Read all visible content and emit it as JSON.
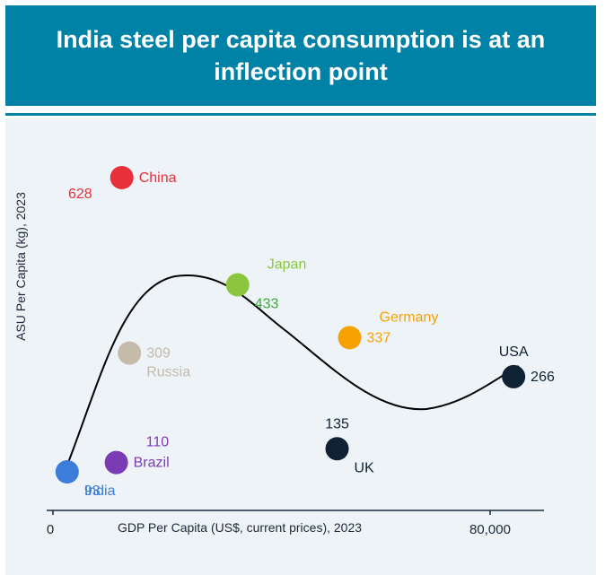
{
  "title": "India steel per capita consumption is at an inflection point",
  "colors": {
    "banner": "#0081a6",
    "panel": "#eef3f8",
    "axis": "#1a2a3a",
    "curve": "#000000"
  },
  "chart_data": {
    "type": "scatter",
    "title": "India steel per capita consumption is at an inflection point",
    "xlabel": "GDP Per Capita (US$, current prices), 2023",
    "ylabel": "ASU Per Capita (kg), 2023",
    "x_ticks": [
      "0",
      "80,000"
    ],
    "trend_curve": true,
    "points": [
      {
        "name": "China",
        "value": 628,
        "value_label": "628",
        "gdp": 12600,
        "color": "#e8303a",
        "label_color": "#e8303a",
        "value_color": "#e8303a",
        "name_pos": "right",
        "value_pos": "below-left"
      },
      {
        "name": "Japan",
        "value": 433,
        "value_label": "433",
        "gdp": 33800,
        "color": "#8cc63f",
        "label_color": "#8cc63f",
        "value_color": "#3aa935",
        "name_pos": "above-right",
        "value_pos": "below-right"
      },
      {
        "name": "Germany",
        "value": 337,
        "value_label": "337",
        "gdp": 54300,
        "color": "#f7a100",
        "label_color": "#f7a100",
        "value_color": "#f7a100",
        "name_pos": "above-right",
        "value_pos": "right"
      },
      {
        "name": "Russia",
        "value": 309,
        "value_label": "309",
        "gdp": 14000,
        "color": "#c4bbaa",
        "label_color": "#c4bbaa",
        "value_color": "#c4bbaa",
        "name_pos": "below-right",
        "value_pos": "right"
      },
      {
        "name": "USA",
        "value": 266,
        "value_label": "266",
        "gdp": 84300,
        "color": "#0e2233",
        "label_color": "#0e2233",
        "value_color": "#0e2233",
        "name_pos": "above",
        "value_pos": "right"
      },
      {
        "name": "UK",
        "value": 135,
        "value_label": "135",
        "gdp": 52000,
        "color": "#0e2233",
        "label_color": "#0e2233",
        "value_color": "#0e2233",
        "name_pos": "below-right",
        "value_pos": "above"
      },
      {
        "name": "Brazil",
        "value": 110,
        "value_label": "110",
        "gdp": 11600,
        "color": "#7b3bb4",
        "label_color": "#7b3bb4",
        "value_color": "#7b3bb4",
        "name_pos": "right",
        "value_pos": "above-right"
      },
      {
        "name": "India",
        "value": 93,
        "value_label": "93",
        "gdp": 2600,
        "color": "#3b7dd8",
        "label_color": "#3b7dd8",
        "value_color": "#3b7dd8",
        "name_pos": "below-right",
        "value_pos": "below-right"
      }
    ]
  }
}
